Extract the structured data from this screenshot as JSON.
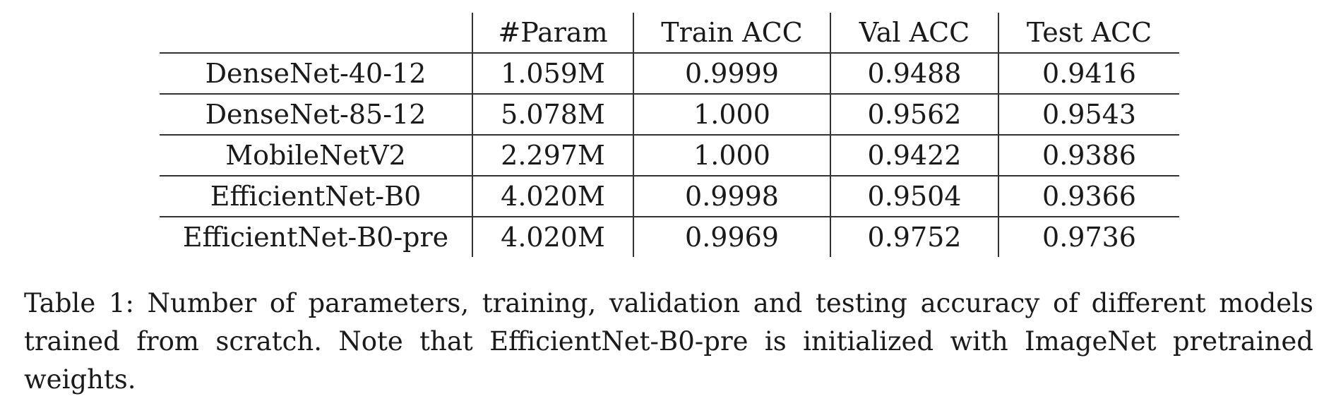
{
  "table": {
    "headers": [
      "",
      "#Param",
      "Train ACC",
      "Val ACC",
      "Test ACC"
    ],
    "rows": [
      {
        "model": "DenseNet-40-12",
        "param": "1.059M",
        "train": "0.9999",
        "val": "0.9488",
        "test": "0.9416",
        "test_bold": true
      },
      {
        "model": "DenseNet-85-12",
        "param": "5.078M",
        "train": "1.000",
        "val": "0.9562",
        "test": "0.9543",
        "test_bold": true
      },
      {
        "model": "MobileNetV2",
        "param": "2.297M",
        "train": "1.000",
        "val": "0.9422",
        "test": "0.9386",
        "test_bold": false
      },
      {
        "model": "EfficientNet-B0",
        "param": "4.020M",
        "train": "0.9998",
        "val": "0.9504",
        "test": "0.9366",
        "test_bold": false
      },
      {
        "model": "EfficientNet-B0-pre",
        "param": "4.020M",
        "train": "0.9969",
        "val": "0.9752",
        "test": "0.9736",
        "test_bold": true
      }
    ]
  },
  "caption": {
    "text": "Table 1: Number of parameters, training, validation and testing accuracy of different models trained from scratch. Note that EfficientNet-B0-pre is initialized with ImageNet pretrained weights."
  }
}
